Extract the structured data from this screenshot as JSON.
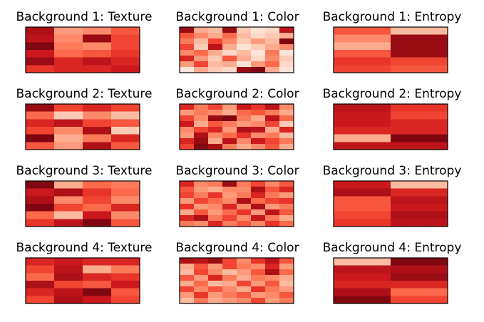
{
  "figure": {
    "palette": [
      "#fff5f0",
      "#fee0d2",
      "#fcbba1",
      "#fc9272",
      "#fb6a4a",
      "#ef3b2c",
      "#cb181d",
      "#a50f15",
      "#67000d"
    ]
  },
  "chart_data": [
    {
      "type": "heatmap",
      "title": "Background 1: Texture",
      "rows": 6,
      "cols": 4,
      "values": [
        [
          0.85,
          0.35,
          0.4,
          0.55
        ],
        [
          0.8,
          0.4,
          0.9,
          0.6
        ],
        [
          0.95,
          0.45,
          0.4,
          0.6
        ],
        [
          0.75,
          0.5,
          0.55,
          0.65
        ],
        [
          0.9,
          0.7,
          0.8,
          0.7
        ],
        [
          0.65,
          0.7,
          0.7,
          0.75
        ]
      ]
    },
    {
      "type": "heatmap",
      "title": "Background 1: Color",
      "rows": 8,
      "cols": 8,
      "values": [
        [
          0.9,
          0.3,
          0.25,
          0.9,
          0.2,
          0.1,
          0.15,
          0.8
        ],
        [
          0.55,
          0.4,
          0.3,
          0.5,
          0.25,
          0.15,
          0.2,
          0.3
        ],
        [
          0.45,
          0.25,
          0.6,
          0.4,
          0.2,
          0.35,
          0.25,
          0.95
        ],
        [
          0.6,
          0.2,
          0.8,
          0.3,
          0.1,
          0.2,
          0.3,
          0.4
        ],
        [
          0.4,
          0.5,
          0.3,
          0.15,
          0.25,
          0.1,
          0.45,
          0.1
        ],
        [
          0.7,
          0.35,
          0.2,
          0.55,
          0.3,
          0.15,
          0.4,
          0.2
        ],
        [
          0.35,
          0.6,
          0.25,
          0.3,
          0.1,
          0.35,
          0.5,
          0.15
        ],
        [
          0.1,
          0.3,
          0.2,
          0.15,
          0.9,
          0.95,
          0.3,
          0.1
        ]
      ]
    },
    {
      "type": "heatmap",
      "title": "Background 1: Entropy",
      "rows": 6,
      "cols": 2,
      "values": [
        [
          0.55,
          0.25
        ],
        [
          0.4,
          0.9
        ],
        [
          0.3,
          0.9
        ],
        [
          0.55,
          0.9
        ],
        [
          0.65,
          0.6
        ],
        [
          0.6,
          0.55
        ]
      ]
    },
    {
      "type": "heatmap",
      "title": "Background 2: Texture",
      "rows": 6,
      "cols": 4,
      "values": [
        [
          0.9,
          0.6,
          0.7,
          0.6
        ],
        [
          0.5,
          0.2,
          0.4,
          0.25
        ],
        [
          0.7,
          0.8,
          0.6,
          0.55
        ],
        [
          0.6,
          0.4,
          0.85,
          0.2
        ],
        [
          0.95,
          0.3,
          0.45,
          0.7
        ],
        [
          0.55,
          0.35,
          0.85,
          0.55
        ]
      ]
    },
    {
      "type": "heatmap",
      "title": "Background 2: Color",
      "rows": 8,
      "cols": 8,
      "values": [
        [
          0.7,
          0.45,
          0.6,
          0.35,
          0.75,
          0.65,
          0.8,
          0.4
        ],
        [
          0.35,
          0.45,
          0.4,
          0.3,
          0.5,
          0.55,
          0.45,
          0.3
        ],
        [
          0.6,
          0.4,
          0.9,
          0.95,
          0.45,
          0.3,
          0.8,
          0.5
        ],
        [
          0.75,
          0.3,
          0.55,
          0.45,
          0.35,
          0.4,
          0.6,
          0.2
        ],
        [
          0.4,
          0.6,
          0.7,
          0.35,
          0.85,
          0.8,
          0.3,
          0.7
        ],
        [
          0.35,
          0.85,
          0.4,
          0.5,
          0.65,
          0.4,
          0.45,
          0.25
        ],
        [
          0.7,
          0.9,
          0.3,
          0.8,
          0.4,
          0.75,
          0.6,
          0.45
        ],
        [
          0.6,
          0.95,
          0.85,
          0.45,
          0.3,
          0.4,
          0.55,
          0.3
        ]
      ]
    },
    {
      "type": "heatmap",
      "title": "Background 2: Entropy",
      "rows": 6,
      "cols": 2,
      "values": [
        [
          0.8,
          0.65
        ],
        [
          0.75,
          0.6
        ],
        [
          0.75,
          0.7
        ],
        [
          0.7,
          0.7
        ],
        [
          0.3,
          0.95
        ],
        [
          0.8,
          0.8
        ]
      ]
    },
    {
      "type": "heatmap",
      "title": "Background 3: Texture",
      "rows": 6,
      "cols": 4,
      "values": [
        [
          0.95,
          0.3,
          0.5,
          0.45
        ],
        [
          0.75,
          0.85,
          0.65,
          0.5
        ],
        [
          0.85,
          0.4,
          0.6,
          0.4
        ],
        [
          0.95,
          0.6,
          0.5,
          0.7
        ],
        [
          0.5,
          0.25,
          0.75,
          0.4
        ],
        [
          0.65,
          0.8,
          0.95,
          0.55
        ]
      ]
    },
    {
      "type": "heatmap",
      "title": "Background 3: Color",
      "rows": 8,
      "cols": 8,
      "values": [
        [
          0.7,
          0.4,
          0.45,
          0.9,
          0.45,
          0.6,
          0.4,
          0.55
        ],
        [
          0.55,
          0.35,
          0.3,
          0.4,
          0.4,
          0.85,
          0.55,
          0.7
        ],
        [
          0.6,
          0.45,
          0.65,
          0.35,
          0.45,
          0.7,
          0.45,
          0.35
        ],
        [
          0.35,
          0.6,
          0.5,
          0.4,
          0.85,
          0.5,
          0.6,
          0.65
        ],
        [
          0.65,
          0.35,
          0.4,
          0.7,
          0.4,
          0.85,
          0.35,
          0.45
        ],
        [
          0.3,
          0.55,
          0.35,
          0.5,
          0.65,
          0.35,
          0.8,
          0.55
        ],
        [
          0.7,
          0.85,
          0.45,
          0.6,
          0.4,
          0.75,
          0.45,
          0.3
        ],
        [
          0.45,
          0.4,
          0.7,
          0.45,
          0.55,
          0.4,
          0.65,
          0.5
        ]
      ]
    },
    {
      "type": "heatmap",
      "title": "Background 3: Entropy",
      "rows": 6,
      "cols": 2,
      "values": [
        [
          0.75,
          0.25
        ],
        [
          0.85,
          0.7
        ],
        [
          0.55,
          0.8
        ],
        [
          0.55,
          0.75
        ],
        [
          0.6,
          0.85
        ],
        [
          0.65,
          0.8
        ]
      ]
    },
    {
      "type": "heatmap",
      "title": "Background 4: Texture",
      "rows": 6,
      "cols": 4,
      "values": [
        [
          0.7,
          0.75,
          0.7,
          0.7
        ],
        [
          0.6,
          0.8,
          0.3,
          0.45
        ],
        [
          0.5,
          0.85,
          0.7,
          0.65
        ],
        [
          0.85,
          0.6,
          0.55,
          0.75
        ],
        [
          0.7,
          0.8,
          0.95,
          0.55
        ],
        [
          0.6,
          0.85,
          0.75,
          0.6
        ]
      ]
    },
    {
      "type": "heatmap",
      "title": "Background 4: Color",
      "rows": 8,
      "cols": 8,
      "values": [
        [
          0.85,
          0.8,
          0.9,
          0.6,
          0.4,
          0.65,
          0.8,
          0.55
        ],
        [
          0.3,
          0.55,
          0.35,
          0.6,
          0.45,
          0.4,
          0.7,
          0.35
        ],
        [
          0.25,
          0.6,
          0.4,
          0.25,
          0.35,
          0.55,
          0.85,
          0.5
        ],
        [
          0.55,
          0.35,
          0.7,
          0.45,
          0.3,
          0.45,
          0.4,
          0.3
        ],
        [
          0.3,
          0.5,
          0.25,
          0.3,
          0.6,
          0.35,
          0.55,
          0.25
        ],
        [
          0.6,
          0.4,
          0.55,
          0.4,
          0.3,
          0.65,
          0.45,
          0.35
        ],
        [
          0.35,
          0.65,
          0.35,
          0.45,
          0.55,
          0.35,
          0.4,
          0.55
        ],
        [
          0.25,
          0.45,
          0.3,
          0.35,
          0.4,
          0.6,
          0.35,
          0.45
        ]
      ]
    },
    {
      "type": "heatmap",
      "title": "Background 4: Entropy",
      "rows": 6,
      "cols": 2,
      "values": [
        [
          0.25,
          0.95
        ],
        [
          0.8,
          0.85
        ],
        [
          0.75,
          0.9
        ],
        [
          0.7,
          0.7
        ],
        [
          0.85,
          0.5
        ],
        [
          0.95,
          0.6
        ]
      ]
    }
  ]
}
